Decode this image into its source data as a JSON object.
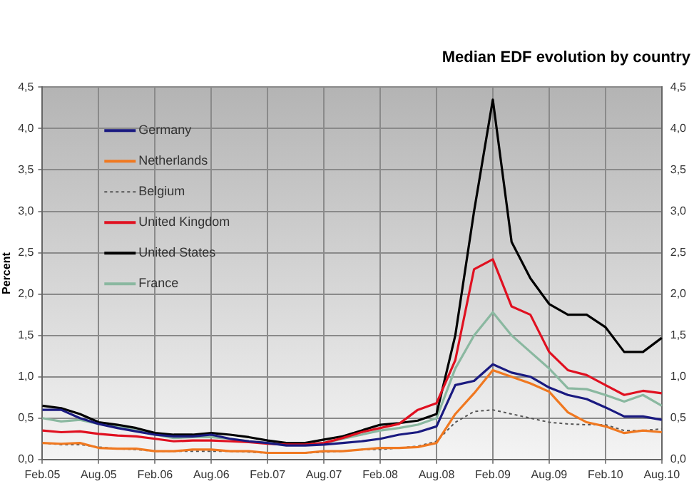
{
  "chart_data": {
    "type": "line",
    "title": "Median EDF evolution by country",
    "ylabel": "Percent",
    "categories": [
      "Feb.05",
      null,
      null,
      "Aug.05",
      null,
      null,
      "Feb.06",
      null,
      null,
      "Aug.06",
      null,
      null,
      "Feb.07",
      null,
      null,
      "Aug.07",
      null,
      null,
      "Feb.08",
      null,
      null,
      "Aug.08",
      null,
      null,
      "Feb.09",
      null,
      null,
      "Aug.09",
      null,
      null,
      "Feb.10",
      null,
      null,
      "Aug.10"
    ],
    "series": [
      {
        "name": "Germany",
        "color": "#1a1a80",
        "values": [
          0.6,
          0.6,
          0.5,
          0.43,
          0.38,
          0.34,
          0.3,
          0.28,
          0.28,
          0.3,
          0.25,
          0.22,
          0.2,
          0.17,
          0.17,
          0.18,
          0.2,
          0.22,
          0.25,
          0.3,
          0.33,
          0.4,
          0.9,
          0.95,
          1.15,
          1.05,
          1.0,
          0.87,
          0.78,
          0.73,
          0.63,
          0.52,
          0.52,
          0.48
        ]
      },
      {
        "name": "Netherlands",
        "color": "#f07820",
        "values": [
          0.2,
          0.19,
          0.2,
          0.14,
          0.13,
          0.13,
          0.1,
          0.1,
          0.12,
          0.12,
          0.1,
          0.1,
          0.08,
          0.08,
          0.08,
          0.1,
          0.1,
          0.12,
          0.14,
          0.14,
          0.15,
          0.2,
          0.55,
          0.8,
          1.08,
          1.0,
          0.92,
          0.82,
          0.57,
          0.45,
          0.4,
          0.32,
          0.35,
          0.33
        ]
      },
      {
        "name": "Belgium",
        "color": "#555555",
        "line_style": "dotted",
        "values": [
          0.2,
          0.18,
          0.18,
          0.15,
          0.13,
          0.12,
          0.1,
          0.1,
          0.1,
          0.1,
          0.1,
          0.09,
          0.08,
          0.08,
          0.08,
          0.09,
          0.1,
          0.12,
          0.12,
          0.14,
          0.16,
          0.22,
          0.45,
          0.58,
          0.6,
          0.55,
          0.5,
          0.45,
          0.43,
          0.42,
          0.42,
          0.35,
          0.35,
          0.37
        ]
      },
      {
        "name": "United Kingdom",
        "color": "#e01020",
        "values": [
          0.35,
          0.33,
          0.34,
          0.31,
          0.29,
          0.28,
          0.25,
          0.22,
          0.23,
          0.23,
          0.22,
          0.21,
          0.19,
          0.18,
          0.18,
          0.2,
          0.26,
          0.33,
          0.38,
          0.43,
          0.6,
          0.68,
          1.2,
          2.3,
          2.42,
          1.85,
          1.75,
          1.3,
          1.08,
          1.02,
          0.9,
          0.78,
          0.83,
          0.8
        ]
      },
      {
        "name": "United States",
        "color": "#000000",
        "values": [
          0.65,
          0.62,
          0.55,
          0.45,
          0.42,
          0.38,
          0.32,
          0.3,
          0.3,
          0.32,
          0.3,
          0.27,
          0.23,
          0.2,
          0.2,
          0.24,
          0.28,
          0.35,
          0.42,
          0.44,
          0.47,
          0.55,
          1.5,
          3.0,
          4.35,
          2.63,
          2.19,
          1.88,
          1.75,
          1.75,
          1.6,
          1.3,
          1.3,
          1.47
        ]
      },
      {
        "name": "France",
        "color": "#8ab8a0",
        "values": [
          0.5,
          0.46,
          0.48,
          0.43,
          0.4,
          0.35,
          0.3,
          0.26,
          0.27,
          0.27,
          0.25,
          0.22,
          0.2,
          0.18,
          0.18,
          0.2,
          0.25,
          0.3,
          0.35,
          0.38,
          0.42,
          0.5,
          1.1,
          1.5,
          1.78,
          1.5,
          1.3,
          1.1,
          0.86,
          0.85,
          0.78,
          0.7,
          0.78,
          0.65
        ]
      }
    ],
    "ylim": [
      0,
      4.5
    ],
    "yticks": [
      {
        "value": 0,
        "label": "0,0"
      },
      {
        "value": 0.5,
        "label": "0,5"
      },
      {
        "value": 1,
        "label": "1,0"
      },
      {
        "value": 1.5,
        "label": "1,5"
      },
      {
        "value": 2,
        "label": "2,0"
      },
      {
        "value": 2.5,
        "label": "2,5"
      },
      {
        "value": 3,
        "label": "3,0"
      },
      {
        "value": 3.5,
        "label": "3,5"
      },
      {
        "value": 4,
        "label": "4,0"
      },
      {
        "value": 4.5,
        "label": "4,5"
      }
    ],
    "y2lim": [
      0,
      4.5
    ],
    "y2ticks": [
      {
        "value": 0,
        "label": "0,0"
      },
      {
        "value": 0.5,
        "label": "0,5"
      },
      {
        "value": 1,
        "label": "1,0"
      },
      {
        "value": 1.5,
        "label": "1,5"
      },
      {
        "value": 2,
        "label": "2,0"
      },
      {
        "value": 2.5,
        "label": "2,5"
      },
      {
        "value": 3,
        "label": "3,0"
      },
      {
        "value": 3.5,
        "label": "3,5"
      },
      {
        "value": 4,
        "label": "4,0"
      },
      {
        "value": 4.5,
        "label": "4,5"
      }
    ],
    "grid": true,
    "legend": "top left",
    "marker": "none",
    "line_style": "solid"
  }
}
